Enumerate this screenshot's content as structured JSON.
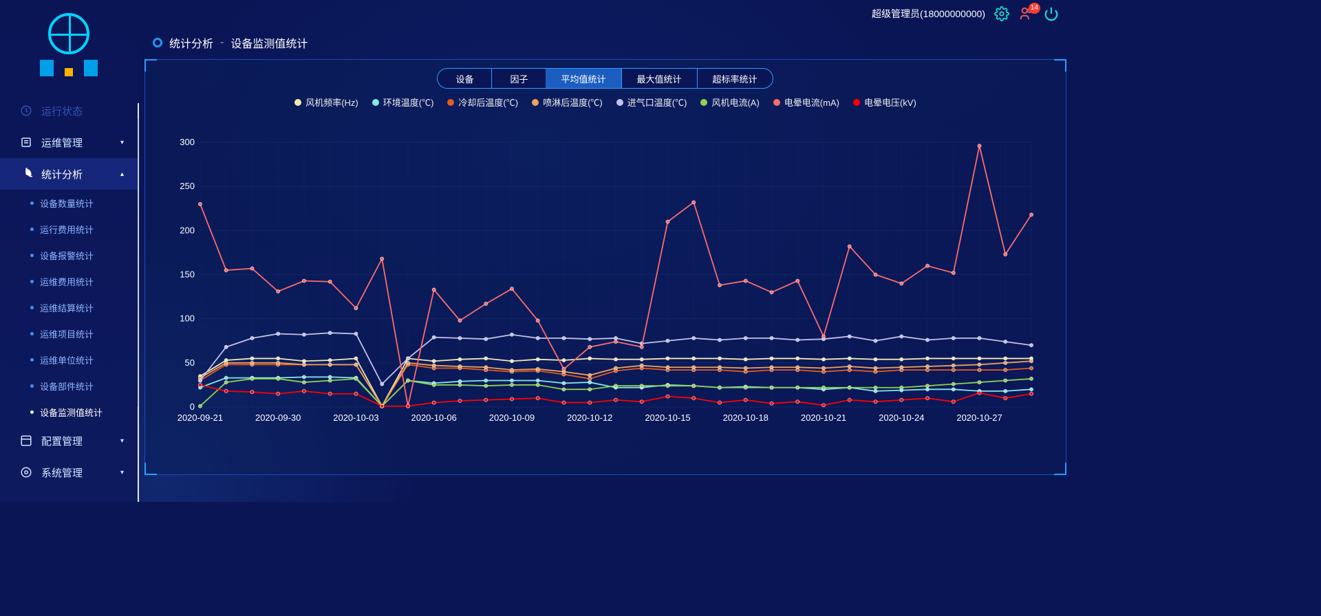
{
  "header": {
    "user_label": "超级管理员(18000000000)",
    "badge_count": "14"
  },
  "sidebar": {
    "items": [
      {
        "label": "运行状态",
        "icon": "dashboard",
        "dim": true,
        "caret": ""
      },
      {
        "label": "运维管理",
        "icon": "wrench",
        "dim": false,
        "caret": "▾"
      },
      {
        "label": "统计分析",
        "icon": "pie",
        "dim": false,
        "active": true,
        "caret": "▴",
        "subs": [
          {
            "label": "设备数量统计"
          },
          {
            "label": "运行费用统计"
          },
          {
            "label": "设备报警统计"
          },
          {
            "label": "运维费用统计"
          },
          {
            "label": "运维结算统计"
          },
          {
            "label": "运维项目统计"
          },
          {
            "label": "运维单位统计"
          },
          {
            "label": "设备部件统计"
          },
          {
            "label": "设备监测值统计",
            "active": true
          }
        ]
      },
      {
        "label": "配置管理",
        "icon": "config",
        "dim": false,
        "caret": "▾"
      },
      {
        "label": "系统管理",
        "icon": "gear",
        "dim": false,
        "caret": "▾"
      }
    ]
  },
  "breadcrumb": {
    "a": "统计分析",
    "sep": "-",
    "b": "设备监测值统计"
  },
  "filters": {
    "device": "设备",
    "factor": "因子"
  },
  "tabs": [
    {
      "label": "平均值统计",
      "active": true
    },
    {
      "label": "最大值统计",
      "active": false
    },
    {
      "label": "超标率统计",
      "active": false
    }
  ],
  "chart": {
    "type": "line",
    "ylim": [
      0,
      300
    ],
    "ytick_step": 50,
    "xlabels": [
      "2020-09-21",
      "",
      "",
      "2020-09-30",
      "",
      "",
      "2020-10-03",
      "",
      "",
      "2020-10-06",
      "",
      "",
      "2020-10-09",
      "",
      "",
      "2020-10-12",
      "",
      "",
      "2020-10-15",
      "",
      "",
      "2020-10-18",
      "",
      "",
      "2020-10-21",
      "",
      "",
      "2020-10-24",
      "",
      "",
      "2020-10-27",
      "",
      ""
    ],
    "x_ticks_shown": [
      0,
      3,
      6,
      9,
      12,
      15,
      18,
      21,
      24,
      27,
      30
    ],
    "background_color": "#0a1556",
    "grid_color": "#3a4a8a",
    "title_fontsize": 14,
    "label_fontsize": 13,
    "marker_radius": 2.5,
    "line_width": 1.8,
    "series": [
      {
        "name": "风机频率(Hz)",
        "color": "#f2e7b4",
        "values": [
          35,
          53,
          55,
          55,
          52,
          53,
          55,
          1,
          55,
          52,
          54,
          55,
          52,
          54,
          53,
          55,
          54,
          54,
          55,
          55,
          55,
          54,
          55,
          55,
          54,
          55,
          54,
          54,
          55,
          55,
          55,
          55,
          55
        ]
      },
      {
        "name": "环境温度(℃)",
        "color": "#84e8e6",
        "values": [
          22,
          33,
          33,
          33,
          34,
          34,
          33,
          1,
          30,
          27,
          29,
          30,
          30,
          30,
          27,
          28,
          22,
          22,
          25,
          24,
          22,
          23,
          22,
          22,
          20,
          22,
          18,
          19,
          20,
          20,
          18,
          18,
          20
        ]
      },
      {
        "name": "冷却后温度(℃)",
        "color": "#e55a1d",
        "values": [
          30,
          48,
          48,
          48,
          48,
          48,
          48,
          1,
          48,
          44,
          44,
          42,
          40,
          41,
          37,
          32,
          41,
          44,
          42,
          42,
          42,
          40,
          42,
          42,
          40,
          42,
          40,
          42,
          42,
          42,
          42,
          42,
          44
        ]
      },
      {
        "name": "喷淋后温度(℃)",
        "color": "#f0a25b",
        "values": [
          33,
          50,
          50,
          50,
          48,
          48,
          48,
          1,
          50,
          47,
          46,
          45,
          42,
          43,
          40,
          36,
          44,
          47,
          45,
          45,
          45,
          44,
          45,
          45,
          44,
          46,
          44,
          45,
          46,
          47,
          48,
          50,
          52
        ]
      },
      {
        "name": "进气口温度(℃)",
        "color": "#c2c2e8",
        "values": [
          30,
          68,
          78,
          83,
          82,
          84,
          83,
          26,
          55,
          79,
          78,
          77,
          82,
          78,
          78,
          77,
          78,
          72,
          75,
          78,
          76,
          78,
          78,
          76,
          77,
          80,
          75,
          80,
          76,
          78,
          78,
          74,
          70
        ]
      },
      {
        "name": "风机电流(A)",
        "color": "#8fd14f",
        "values": [
          1,
          28,
          32,
          32,
          28,
          30,
          32,
          1,
          30,
          25,
          25,
          24,
          25,
          25,
          20,
          20,
          24,
          24,
          24,
          24,
          22,
          22,
          22,
          22,
          22,
          22,
          22,
          22,
          24,
          26,
          28,
          30,
          32
        ]
      },
      {
        "name": "电晕电流(mA)",
        "color": "#ff6b6b",
        "values": [
          230,
          155,
          157,
          131,
          143,
          142,
          112,
          168,
          1,
          133,
          98,
          117,
          134,
          98,
          43,
          68,
          74,
          68,
          210,
          232,
          138,
          143,
          130,
          143,
          80,
          182,
          150,
          140,
          160,
          152,
          296,
          173,
          218
        ]
      },
      {
        "name": "电晕电压(kV)",
        "color": "#ff0000",
        "values": [
          25,
          18,
          17,
          15,
          18,
          15,
          15,
          1,
          1,
          5,
          7,
          8,
          9,
          10,
          5,
          5,
          8,
          6,
          12,
          10,
          5,
          8,
          4,
          6,
          2,
          8,
          6,
          8,
          10,
          6,
          16,
          10,
          15
        ]
      }
    ]
  },
  "scrollbar": {
    "thumb_top": 10,
    "thumb_height": 420
  }
}
